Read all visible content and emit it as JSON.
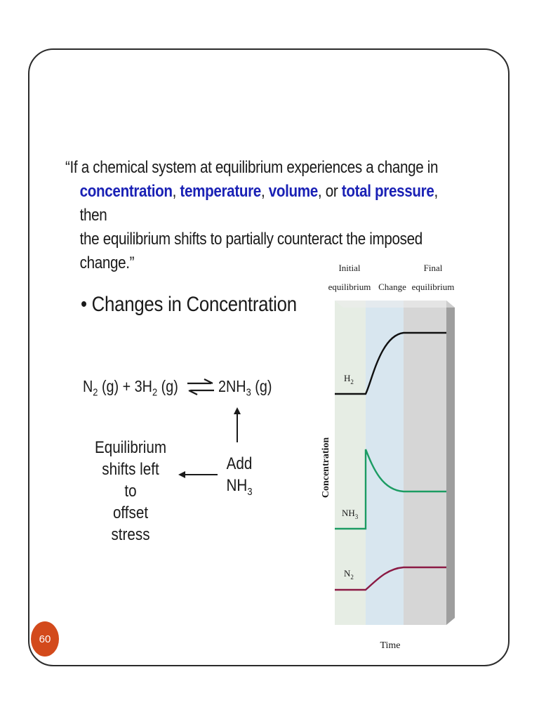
{
  "quote": {
    "line1": "“If a chemical system at equilibrium experiences a change in",
    "kw_concentration": "concentration",
    "sep1": ", ",
    "kw_temperature": "temperature",
    "sep2": ", ",
    "kw_volume": "volume",
    "sep3": ", or ",
    "kw_total_pressure": "total pressure",
    "tail2": ", then",
    "line3": "the equilibrium shifts to partially counteract the imposed change.”"
  },
  "bullet": "• Changes in Concentration",
  "equation": {
    "n2": "N",
    "n2_sub": "2",
    "n2_phase": " (g)",
    "plus_3h2": " + 3H",
    "h2_sub": "2",
    "h2_phase": " (g)",
    "nh3": "2NH",
    "nh3_sub": "3",
    "nh3_phase": " (g)"
  },
  "annotation": {
    "shift_line1": "Equilibrium",
    "shift_line2": "shifts left to",
    "shift_line3": "offset stress",
    "add_line1": "Add",
    "add_line2": "NH",
    "add_sub": "3"
  },
  "graph": {
    "phase_initial_1": "Initial",
    "phase_initial_2": "equilibrium",
    "phase_change": "Change",
    "phase_final_1": "Final",
    "phase_final_2": "equilibrium",
    "ylabel": "Concentration",
    "xlabel": "Time",
    "label_h2": "H",
    "label_h2_sub": "2",
    "label_nh3": "NH",
    "label_nh3_sub": "3",
    "label_n2": "N",
    "label_n2_sub": "2",
    "colors": {
      "initial_band": "#e6ede4",
      "change_band": "#d8e6ef",
      "final_band": "#d6d6d6",
      "h2": "#111111",
      "nh3": "#1c9c63",
      "n2": "#8b1a44"
    }
  },
  "page_number": "60"
}
